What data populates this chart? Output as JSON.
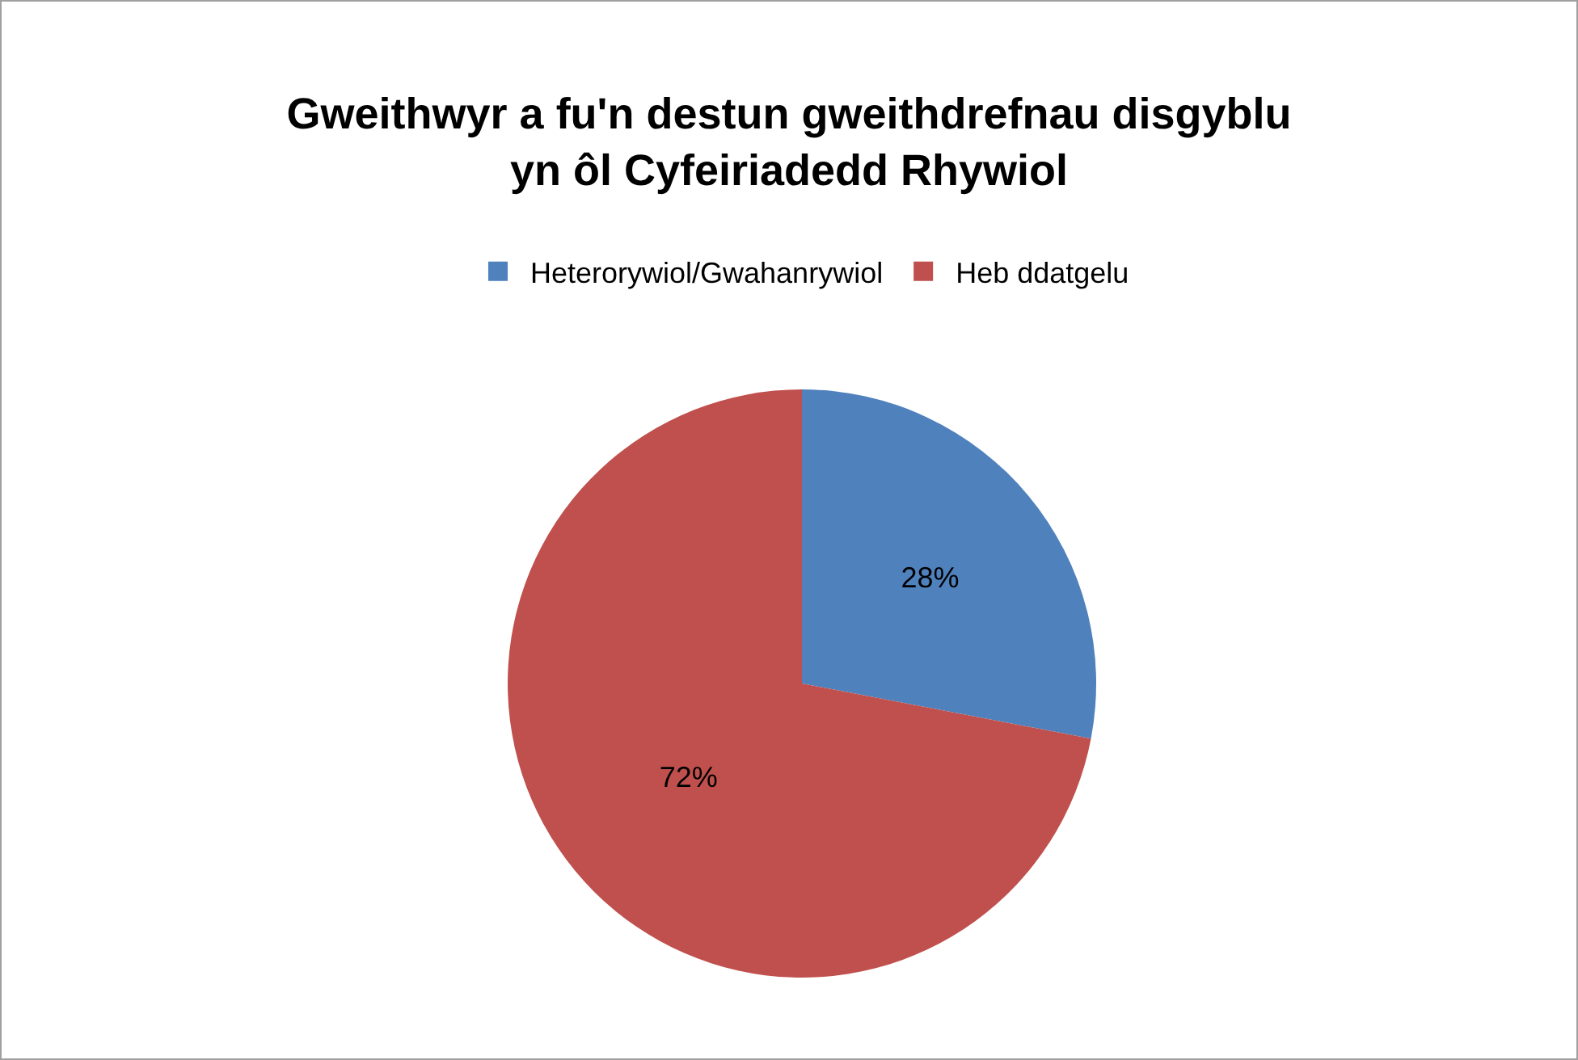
{
  "chart_data": {
    "type": "pie",
    "title": "Gweithwyr a fu'n destun gweithdrefnau disgyblu\nyn ôl Cyfeiriadedd Rhywiol",
    "categories": [
      "Heterorywiol/Gwahanrywiol",
      "Heb ddatgelu"
    ],
    "values": [
      28,
      72
    ],
    "value_labels": [
      "28%",
      "72%"
    ],
    "colors": [
      "#4f81bd",
      "#c0504d"
    ],
    "legend": "top"
  }
}
